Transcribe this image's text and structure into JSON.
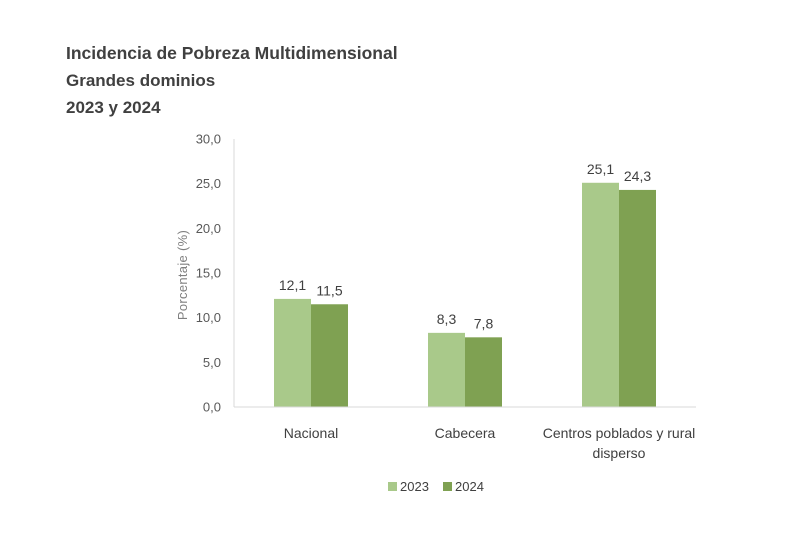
{
  "title_lines": [
    "Incidencia de Pobreza Multidimensional",
    "Grandes dominios",
    "2023 y 2024"
  ],
  "chart_data": {
    "type": "bar",
    "title": "Incidencia de Pobreza Multidimensional Grandes dominios 2023 y 2024",
    "categories": [
      [
        "Nacional"
      ],
      [
        "Cabecera"
      ],
      [
        "Centros poblados y rural",
        "disperso"
      ]
    ],
    "series": [
      {
        "name": "2023",
        "values": [
          12.1,
          8.3,
          25.1
        ],
        "labels": [
          "12,1",
          "8,3",
          "25,1"
        ],
        "color": "#a9c98a"
      },
      {
        "name": "2024",
        "values": [
          11.5,
          7.8,
          24.3
        ],
        "labels": [
          "11,5",
          "7,8",
          "24,3"
        ],
        "color": "#7fa152"
      }
    ],
    "ylabel": "Porcentaje (%)",
    "xlabel": "",
    "ylim": [
      0,
      30
    ],
    "yticks": [
      0,
      5,
      10,
      15,
      20,
      25,
      30
    ],
    "ytick_labels": [
      "0,0",
      "5,0",
      "10,0",
      "15,0",
      "20,0",
      "25,0",
      "30,0"
    ],
    "grid": false,
    "legend_position": "bottom-center"
  }
}
